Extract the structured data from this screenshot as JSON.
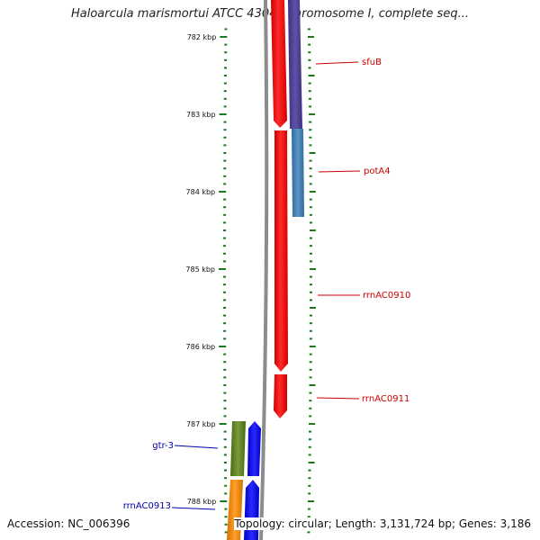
{
  "title": "Haloarcula marismortui ATCC 43049 chromosome I, complete seq...",
  "footer": {
    "accession": "Accession: NC_006396",
    "summary": "Topology: circular; Length: 3,131,724 bp; Genes: 3,186"
  },
  "colors": {
    "backbone": "#8c8c8c",
    "ticks": "#1a7a1a",
    "forward_gene": "#ff0000",
    "label_red": "#cc0000",
    "label_blue": "#0000aa"
  },
  "scale": {
    "unit": "kbp",
    "major_ticks": [
      {
        "kbp": 782,
        "label": "782 kbp"
      },
      {
        "kbp": 783,
        "label": "783 kbp"
      },
      {
        "kbp": 784,
        "label": "784 kbp"
      },
      {
        "kbp": 785,
        "label": "785 kbp"
      },
      {
        "kbp": 786,
        "label": "786 kbp"
      },
      {
        "kbp": 787,
        "label": "787 kbp"
      },
      {
        "kbp": 788,
        "label": "788 kbp"
      }
    ]
  },
  "genes": [
    {
      "name": "sfuB",
      "color": "#5a4a9a",
      "track": "outer",
      "start": 781.7,
      "end": 783.15,
      "label_side": "right",
      "label_color": "#cc0000"
    },
    {
      "name": "potA4",
      "color": "#4a86b8",
      "track": "outer",
      "start": 783.15,
      "end": 784.33,
      "label_side": "right",
      "label_color": "#cc0000"
    },
    {
      "name": "rrnAC0910",
      "color": "#ff0000",
      "track": "inner",
      "start": 783.15,
      "end": 786.35,
      "label_side": "right",
      "label_color": "#cc0000"
    },
    {
      "name": "rrnAC0911",
      "color": "#ff0000",
      "track": "inner",
      "start": 786.35,
      "end": 786.97,
      "label_side": "right",
      "label_color": "#cc0000"
    },
    {
      "name": "gtr-3",
      "color": "#6a8a2a",
      "track": "left-outer",
      "start": 786.97,
      "end": 787.72,
      "label_side": "left",
      "label_color": "#0000aa"
    },
    {
      "name": "rrnAC0913",
      "color": "#f08c00",
      "track": "left-outer",
      "start": 787.72,
      "end": 789.0,
      "label_side": "left",
      "label_color": "#0000aa"
    }
  ]
}
